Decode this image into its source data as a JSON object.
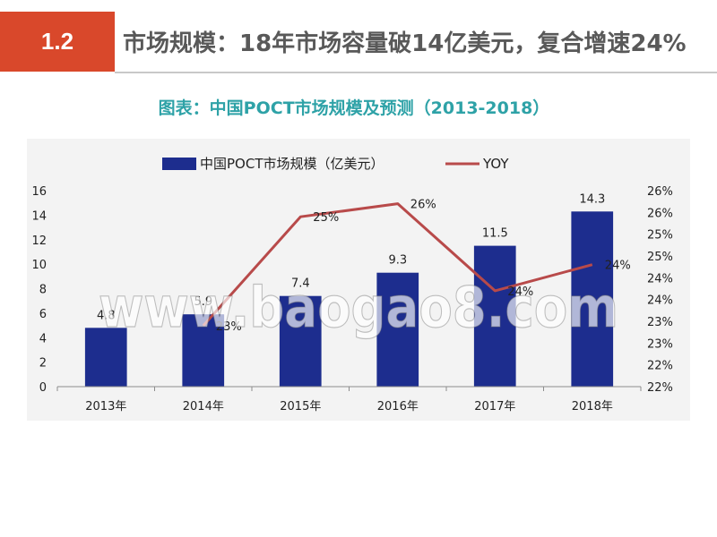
{
  "header": {
    "section_number": "1.2",
    "title": "市场规模：18年市场容量破14亿美元，复合增速24%"
  },
  "subtitle": "图表：中国POCT市场规模及预测（2013-2018）",
  "watermark": "www.baogao8.com",
  "colors": {
    "accent": "#d9482b",
    "title_text": "#595959",
    "subtitle_text": "#2ea2a7",
    "bar": "#1d2d8e",
    "line": "#b84a4a",
    "text": "#222222",
    "axis": "#8c8c8c"
  },
  "chart_data": {
    "type": "bar",
    "categories": [
      "2013年",
      "2014年",
      "2015年",
      "2016年",
      "2017年",
      "2018年"
    ],
    "series": [
      {
        "name": "中国POCT市场规模（亿美元）",
        "type": "bar",
        "axis": "left",
        "values": [
          4.8,
          5.9,
          7.4,
          9.3,
          11.5,
          14.3
        ]
      },
      {
        "name": "YOY",
        "type": "line",
        "axis": "right",
        "values": [
          null,
          22.9,
          25.4,
          25.7,
          23.7,
          24.3
        ],
        "labels": [
          null,
          "23%",
          "25%",
          "26%",
          "24%",
          "24%"
        ]
      }
    ],
    "y_left": {
      "range": [
        0,
        16
      ],
      "ticks": [
        0,
        2,
        4,
        6,
        8,
        10,
        12,
        14,
        16
      ],
      "tick_labels": [
        "0",
        "2",
        "4",
        "6",
        "8",
        "10",
        "12",
        "14",
        "16"
      ]
    },
    "y_right": {
      "range": [
        21.5,
        26.0
      ],
      "ticks": [
        21.5,
        22.0,
        22.5,
        23.0,
        23.5,
        24.0,
        24.5,
        25.0,
        25.5,
        26.0
      ],
      "tick_labels": [
        "22%",
        "22%",
        "23%",
        "23%",
        "24%",
        "24%",
        "25%",
        "25%",
        "26%",
        "26%"
      ]
    },
    "legend": "top",
    "grid": false
  }
}
